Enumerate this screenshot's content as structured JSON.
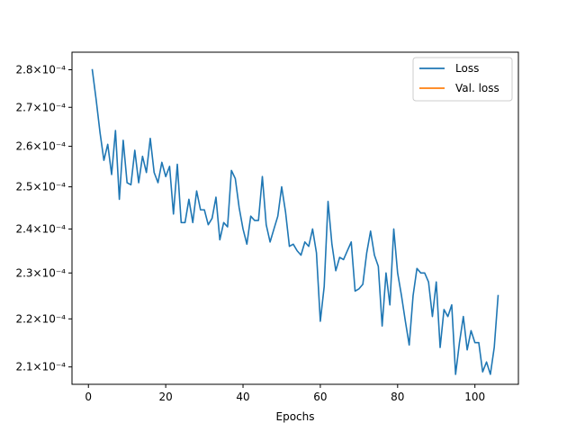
{
  "chart_data": {
    "type": "line",
    "title": "",
    "xlabel": "Epochs",
    "ylabel": "",
    "xlim": [
      -4.25,
      111.25
    ],
    "ylim": [
      0.0002065,
      0.0002848
    ],
    "yscale": "log",
    "grid": false,
    "legend_position": "top-right",
    "xticks": [
      0,
      20,
      40,
      60,
      80,
      100
    ],
    "yticks": [
      {
        "value": 0.00021,
        "label": "2.1×10⁻⁴"
      },
      {
        "value": 0.00022,
        "label": "2.2×10⁻⁴"
      },
      {
        "value": 0.00023,
        "label": "2.3×10⁻⁴"
      },
      {
        "value": 0.00024,
        "label": "2.4×10⁻⁴"
      },
      {
        "value": 0.00025,
        "label": "2.5×10⁻⁴"
      },
      {
        "value": 0.00026,
        "label": "2.6×10⁻⁴"
      },
      {
        "value": 0.00027,
        "label": "2.7×10⁻⁴"
      },
      {
        "value": 0.00028,
        "label": "2.8×10⁻⁴"
      }
    ],
    "series": [
      {
        "name": "Loss",
        "color": "#1f77b4",
        "x": [
          1,
          2,
          3,
          4,
          5,
          6,
          7,
          8,
          9,
          10,
          11,
          12,
          13,
          14,
          15,
          16,
          17,
          18,
          19,
          20,
          21,
          22,
          23,
          24,
          25,
          26,
          27,
          28,
          29,
          30,
          31,
          32,
          33,
          34,
          35,
          36,
          37,
          38,
          39,
          40,
          41,
          42,
          43,
          44,
          45,
          46,
          47,
          48,
          49,
          50,
          51,
          52,
          53,
          54,
          55,
          56,
          57,
          58,
          59,
          60,
          61,
          62,
          63,
          64,
          65,
          66,
          67,
          68,
          69,
          70,
          71,
          72,
          73,
          74,
          75,
          76,
          77,
          78,
          79,
          80,
          81,
          82,
          83,
          84,
          85,
          86,
          87,
          88,
          89,
          90,
          91,
          92,
          93,
          94,
          95,
          96,
          97,
          98,
          99,
          100,
          101,
          102,
          103,
          104,
          105,
          106
        ],
        "y": [
          0.00028,
          0.000272,
          0.0002635,
          0.0002565,
          0.0002605,
          0.000253,
          0.000264,
          0.000247,
          0.0002615,
          0.000251,
          0.0002505,
          0.000259,
          0.000251,
          0.0002575,
          0.0002535,
          0.000262,
          0.0002535,
          0.000251,
          0.000256,
          0.0002525,
          0.000255,
          0.0002435,
          0.0002555,
          0.0002415,
          0.0002415,
          0.000247,
          0.0002415,
          0.000249,
          0.0002445,
          0.0002445,
          0.000241,
          0.0002425,
          0.0002475,
          0.0002375,
          0.0002415,
          0.0002405,
          0.000254,
          0.000252,
          0.000245,
          0.00024,
          0.0002365,
          0.000243,
          0.000242,
          0.000242,
          0.0002525,
          0.000241,
          0.000237,
          0.00024,
          0.000243,
          0.00025,
          0.000244,
          0.000236,
          0.0002365,
          0.000235,
          0.000234,
          0.000237,
          0.000236,
          0.00024,
          0.0002345,
          0.0002195,
          0.000227,
          0.0002465,
          0.0002365,
          0.0002305,
          0.0002335,
          0.000233,
          0.000235,
          0.000237,
          0.000226,
          0.0002265,
          0.0002275,
          0.0002345,
          0.0002395,
          0.000234,
          0.0002315,
          0.0002185,
          0.00023,
          0.000223,
          0.00024,
          0.00023,
          0.000225,
          0.0002195,
          0.0002145,
          0.000225,
          0.000231,
          0.00023,
          0.00023,
          0.000228,
          0.0002205,
          0.000228,
          0.000214,
          0.000222,
          0.0002205,
          0.000223,
          0.0002085,
          0.000215,
          0.0002205,
          0.0002135,
          0.0002175,
          0.000215,
          0.000215,
          0.000209,
          0.000211,
          0.0002085,
          0.000214,
          0.000225
        ]
      },
      {
        "name": "Val. loss",
        "color": "#ff7f0e",
        "x": [],
        "y": []
      }
    ]
  }
}
